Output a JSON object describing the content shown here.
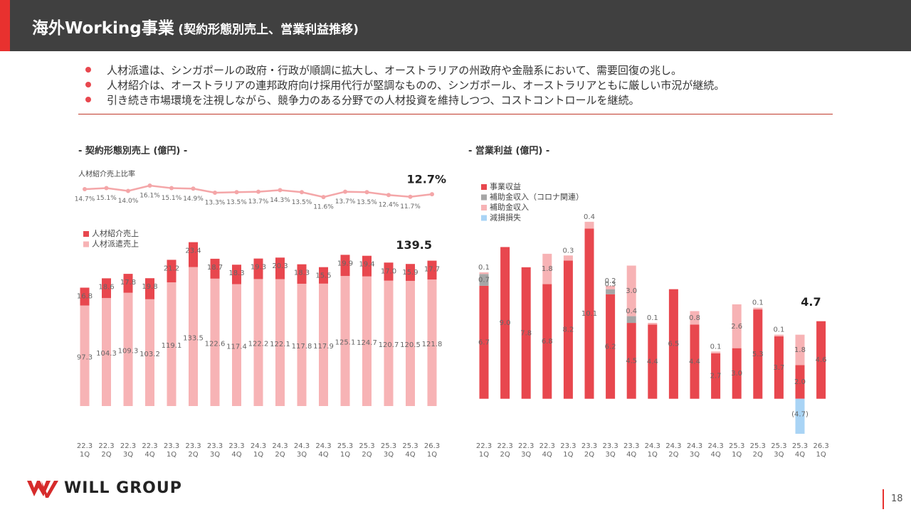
{
  "header": {
    "title": "海外Working事業",
    "subtitle": "(契約形態別売上、営業利益推移)"
  },
  "bullets": [
    "人材派遣は、シンガポールの政府・行政が順調に拡大し、オーストラリアの州政府や金融系において、需要回復の兆し。",
    "人材紹介は、オーストラリアの連邦政府向け採用代行が堅調なものの、シンガポール、オーストラリアともに厳しい市況が継続。",
    "引き続き市場環境を注視しながら、競争力のある分野での人材投資を維持しつつ、コストコントロールを継続。"
  ],
  "logo": "WILL GROUP",
  "page_number": "18",
  "chart_data": [
    {
      "type": "bar",
      "stacked": true,
      "title": "- 契約形態別売上 (億円) -",
      "categories": [
        "22.3\n1Q",
        "22.3\n2Q",
        "22.3\n3Q",
        "22.3\n4Q",
        "23.3\n1Q",
        "23.3\n2Q",
        "23.3\n3Q",
        "23.3\n4Q",
        "24.3\n1Q",
        "24.3\n2Q",
        "24.3\n3Q",
        "24.3\n4Q",
        "25.3\n1Q",
        "25.3\n2Q",
        "25.3\n3Q",
        "25.3\n4Q",
        "26.3\n1Q"
      ],
      "ylim": [
        0,
        170
      ],
      "y2lim": [
        8,
        20
      ],
      "axis_break": true,
      "series": [
        {
          "name": "人材紹介売上比率",
          "type": "line",
          "axis": "y2",
          "color": "#f4a6a8",
          "values": [
            14.7,
            15.1,
            14.0,
            16.1,
            15.1,
            14.9,
            13.3,
            13.5,
            13.7,
            14.3,
            13.5,
            11.6,
            13.7,
            13.5,
            12.4,
            11.7,
            12.7
          ],
          "value_labels": [
            "14.7%",
            "15.1%",
            "14.0%",
            "16.1%",
            "15.1%",
            "14.9%",
            "13.3%",
            "13.5%",
            "13.7%",
            "14.3%",
            "13.5%",
            "11.6%",
            "13.7%",
            "13.5%",
            "12.4%",
            "11.7%",
            "12.7%"
          ]
        },
        {
          "name": "人材派遣売上",
          "color": "#f7b3b5",
          "values": [
            97.3,
            104.3,
            109.3,
            103.2,
            119.1,
            133.5,
            122.6,
            117.4,
            122.2,
            122.1,
            117.8,
            117.9,
            125.1,
            124.7,
            120.7,
            120.5,
            121.8
          ]
        },
        {
          "name": "人材紹介売上",
          "color": "#e8474e",
          "values": [
            16.8,
            18.6,
            17.8,
            19.8,
            21.2,
            23.4,
            18.7,
            18.3,
            19.3,
            20.3,
            18.3,
            15.5,
            19.9,
            19.4,
            17.0,
            15.9,
            17.7
          ],
          "value_labels": [
            "16.8",
            "18.6",
            "17.8",
            "19.8",
            "21.2",
            "23.4",
            "18.7",
            "18.3",
            "19.3",
            "20.3",
            "18.3",
            "15.5",
            "19.9",
            "19.4",
            "17.0",
            "15.9",
            "17.7"
          ]
        }
      ],
      "total_label": "139.5"
    },
    {
      "type": "bar",
      "stacked": true,
      "title": "- 営業利益 (億円) -",
      "categories": [
        "22.3\n1Q",
        "22.3\n2Q",
        "22.3\n3Q",
        "22.3\n4Q",
        "23.3\n1Q",
        "23.3\n2Q",
        "23.3\n3Q",
        "23.3\n4Q",
        "24.3\n1Q",
        "24.3\n2Q",
        "24.3\n3Q",
        "24.3\n4Q",
        "25.3\n1Q",
        "25.3\n2Q",
        "25.3\n3Q",
        "25.3\n4Q",
        "26.3\n1Q"
      ],
      "ylim": [
        -2.5,
        11
      ],
      "axis_break": true,
      "series": [
        {
          "name": "事業収益",
          "color": "#e8474e",
          "values": [
            6.7,
            9.0,
            7.8,
            6.8,
            8.2,
            10.1,
            6.2,
            4.5,
            4.4,
            6.5,
            4.4,
            2.7,
            3.0,
            5.3,
            3.7,
            2.0,
            4.6
          ],
          "value_labels": [
            "6.7",
            "9.0",
            "7.8",
            "6.8",
            "8.2",
            "10.1",
            "6.2",
            "4.5",
            "4.4",
            "6.5",
            "4.4",
            "2.7",
            "3.0",
            "5.3",
            "3.7",
            "2.0",
            "4.6"
          ]
        },
        {
          "name": "補助金収入（コロナ関連）",
          "color": "#a6a6a6",
          "values": [
            0.7,
            null,
            null,
            null,
            null,
            null,
            0.3,
            0.4,
            null,
            null,
            null,
            null,
            null,
            null,
            null,
            null,
            null
          ]
        },
        {
          "name": "補助金収入",
          "color": "#f7b3b5",
          "values": [
            0.1,
            null,
            null,
            1.8,
            0.3,
            0.4,
            0.2,
            3.0,
            0.1,
            null,
            0.8,
            0.1,
            2.6,
            0.1,
            0.1,
            1.8,
            null
          ],
          "value_labels": [
            "0.1",
            null,
            null,
            "1.8",
            "0.3",
            "0.4",
            "0.2",
            "3.0",
            "0.1",
            null,
            "0.8",
            "0.1",
            "2.6",
            "0.1",
            "0.1",
            "1.8",
            null
          ]
        },
        {
          "name": "減損損失",
          "color": "#a9d4f5",
          "values": [
            null,
            null,
            null,
            null,
            null,
            null,
            null,
            null,
            null,
            null,
            null,
            null,
            null,
            null,
            null,
            -4.7,
            null
          ],
          "value_labels": [
            null,
            null,
            null,
            null,
            null,
            null,
            null,
            null,
            null,
            null,
            null,
            null,
            null,
            null,
            null,
            "(4.7)",
            null
          ]
        }
      ],
      "total_label": "4.7"
    }
  ]
}
